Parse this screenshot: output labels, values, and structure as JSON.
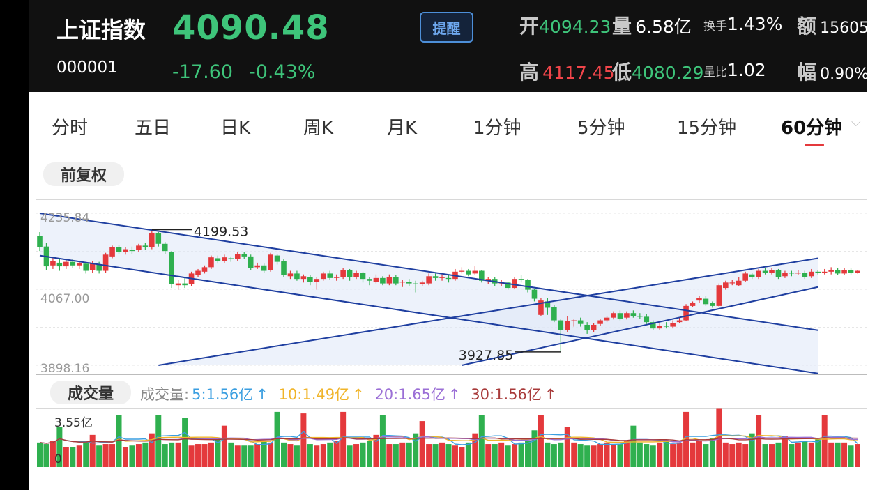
{
  "header": {
    "name": "上证指数",
    "code": "000001",
    "price": "4090.48",
    "change": "-17.60",
    "change_pct": "-0.43%",
    "alert_label": "提醒",
    "open_label": "开",
    "open_value": "4094.23",
    "volume_label": "量",
    "volume_value": "6.58亿",
    "turnover_label": "换手",
    "turnover_value": "1.43%",
    "amount_label": "额",
    "amount_value": "15605",
    "high_label": "高",
    "high_value": "4117.45",
    "low_label": "低",
    "low_value": "4080.29",
    "vol_ratio_label": "量比",
    "vol_ratio_value": "1.02",
    "amplitude_label": "幅",
    "amplitude_value": "0.90%"
  },
  "tabs": [
    {
      "label": "分时"
    },
    {
      "label": "五日"
    },
    {
      "label": "日K"
    },
    {
      "label": "周K"
    },
    {
      "label": "月K"
    },
    {
      "label": "1分钟"
    },
    {
      "label": "5分钟"
    },
    {
      "label": "15分钟"
    },
    {
      "label": "60分钟",
      "active": true
    }
  ],
  "adjust_label": "前复权",
  "volume_panel": {
    "label": "成交量",
    "legend_prefix": "成交量:",
    "ma": [
      {
        "text": "5:1.56亿",
        "color": "#3a9ee0"
      },
      {
        "text": "10:1.49亿",
        "color": "#f0b429"
      },
      {
        "text": "20:1.65亿",
        "color": "#9b6fd6"
      },
      {
        "text": "30:1.56亿",
        "color": "#a83a3a"
      }
    ],
    "arrow": "↑",
    "ymax_label": "3.55亿",
    "ymin_label": "0"
  },
  "colors": {
    "up": "#e4393c",
    "down": "#2fb04f",
    "trend": "#1f3fa0",
    "fill": "#dfe8f7"
  },
  "chart_data": {
    "type": "candlestick",
    "y_axis_labels": [
      "4235.84",
      "4067.00",
      "3898.16"
    ],
    "ylim": [
      3898.16,
      4235.84
    ],
    "max_label": "4199.53",
    "min_label": "3927.85",
    "candles": [
      [
        4185,
        4160,
        4194,
        4152
      ],
      [
        4162,
        4118,
        4170,
        4110
      ],
      [
        4120,
        4130,
        4136,
        4112
      ],
      [
        4126,
        4118,
        4134,
        4108
      ],
      [
        4118,
        4128,
        4132,
        4112
      ],
      [
        4128,
        4120,
        4134,
        4114
      ],
      [
        4120,
        4126,
        4130,
        4112
      ],
      [
        4124,
        4108,
        4128,
        4102
      ],
      [
        4110,
        4124,
        4130,
        4104
      ],
      [
        4122,
        4108,
        4128,
        4102
      ],
      [
        4108,
        4144,
        4148,
        4104
      ],
      [
        4140,
        4160,
        4164,
        4136
      ],
      [
        4160,
        4150,
        4166,
        4146
      ],
      [
        4150,
        4156,
        4160,
        4144
      ],
      [
        4154,
        4152,
        4162,
        4146
      ],
      [
        4154,
        4164,
        4168,
        4150
      ],
      [
        4164,
        4160,
        4170,
        4154
      ],
      [
        4160,
        4192,
        4199.53,
        4156
      ],
      [
        4192,
        4168,
        4194,
        4162
      ],
      [
        4168,
        4152,
        4172,
        4146
      ],
      [
        4150,
        4078,
        4152,
        4070
      ],
      [
        4076,
        4080,
        4088,
        4066
      ],
      [
        4080,
        4076,
        4092,
        4070
      ],
      [
        4078,
        4102,
        4106,
        4074
      ],
      [
        4098,
        4108,
        4112,
        4094
      ],
      [
        4106,
        4116,
        4120,
        4102
      ],
      [
        4116,
        4138,
        4142,
        4112
      ],
      [
        4136,
        4130,
        4142,
        4124
      ],
      [
        4130,
        4138,
        4144,
        4126
      ],
      [
        4136,
        4134,
        4140,
        4128
      ],
      [
        4134,
        4146,
        4150,
        4130
      ],
      [
        4146,
        4140,
        4150,
        4134
      ],
      [
        4140,
        4114,
        4144,
        4110
      ],
      [
        4116,
        4120,
        4126,
        4112
      ],
      [
        4120,
        4108,
        4124,
        4104
      ],
      [
        4110,
        4144,
        4148,
        4106
      ],
      [
        4142,
        4128,
        4146,
        4122
      ],
      [
        4130,
        4098,
        4134,
        4094
      ],
      [
        4096,
        4102,
        4108,
        4090
      ],
      [
        4102,
        4090,
        4108,
        4086
      ],
      [
        4090,
        4096,
        4100,
        4082
      ],
      [
        4094,
        4084,
        4098,
        4076
      ],
      [
        4084,
        4090,
        4094,
        4066
      ],
      [
        4090,
        4102,
        4106,
        4086
      ],
      [
        4102,
        4092,
        4108,
        4088
      ],
      [
        4094,
        4094,
        4100,
        4086
      ],
      [
        4094,
        4110,
        4114,
        4090
      ],
      [
        4110,
        4094,
        4112,
        4086
      ],
      [
        4094,
        4104,
        4108,
        4090
      ],
      [
        4104,
        4090,
        4106,
        4082
      ],
      [
        4090,
        4086,
        4094,
        4076
      ],
      [
        4084,
        4092,
        4100,
        4080
      ],
      [
        4092,
        4080,
        4096,
        4076
      ],
      [
        4080,
        4094,
        4100,
        4076
      ],
      [
        4094,
        4080,
        4098,
        4076
      ],
      [
        4082,
        4084,
        4088,
        4072
      ],
      [
        4084,
        4080,
        4090,
        4074
      ],
      [
        4080,
        4078,
        4086,
        4060
      ],
      [
        4078,
        4082,
        4086,
        4074
      ],
      [
        4080,
        4096,
        4102,
        4076
      ],
      [
        4096,
        4092,
        4102,
        4086
      ],
      [
        4092,
        4094,
        4100,
        4086
      ],
      [
        4092,
        4090,
        4098,
        4082
      ],
      [
        4090,
        4106,
        4112,
        4086
      ],
      [
        4106,
        4108,
        4116,
        4102
      ],
      [
        4108,
        4100,
        4112,
        4096
      ],
      [
        4102,
        4108,
        4118,
        4098
      ],
      [
        4108,
        4086,
        4110,
        4082
      ],
      [
        4086,
        4090,
        4094,
        4078
      ],
      [
        4090,
        4080,
        4094,
        4074
      ],
      [
        4080,
        4080,
        4088,
        4074
      ],
      [
        4082,
        4070,
        4084,
        4066
      ],
      [
        4070,
        4090,
        4094,
        4068
      ],
      [
        4090,
        4088,
        4098,
        4082
      ],
      [
        4088,
        4066,
        4090,
        4060
      ],
      [
        4066,
        4046,
        4068,
        4040
      ],
      [
        4010,
        4042,
        4048,
        4008
      ],
      [
        4040,
        4026,
        4048,
        4010
      ],
      [
        4028,
        3998,
        4032,
        3994
      ],
      [
        3998,
        3976,
        4000,
        3927.85
      ],
      [
        3976,
        3996,
        4008,
        3972
      ],
      [
        3996,
        3998,
        4000,
        3984
      ],
      [
        3998,
        3990,
        4004,
        3984
      ],
      [
        3988,
        3976,
        3994,
        3968
      ],
      [
        3976,
        3988,
        3992,
        3972
      ],
      [
        3990,
        3998,
        4000,
        3986
      ],
      [
        3998,
        4004,
        4008,
        3994
      ],
      [
        4004,
        4014,
        4018,
        4000
      ],
      [
        4014,
        4002,
        4020,
        3998
      ],
      [
        4004,
        4014,
        4018,
        4000
      ],
      [
        4014,
        4008,
        4020,
        4004
      ],
      [
        4008,
        4006,
        4014,
        4002
      ],
      [
        4006,
        3994,
        4012,
        3990
      ],
      [
        3994,
        3980,
        3998,
        3976
      ],
      [
        3980,
        3986,
        3992,
        3976
      ],
      [
        3986,
        3984,
        3994,
        3980
      ],
      [
        3984,
        3992,
        3998,
        3980
      ],
      [
        3994,
        3998,
        4004,
        3992
      ],
      [
        3998,
        4030,
        4034,
        3996
      ],
      [
        4030,
        4036,
        4040,
        4028
      ],
      [
        4042,
        4048,
        4052,
        4036
      ],
      [
        4046,
        4034,
        4052,
        4030
      ],
      [
        4036,
        4030,
        4040,
        4026
      ],
      [
        4030,
        4076,
        4080,
        4028
      ],
      [
        4070,
        4082,
        4086,
        4066
      ],
      [
        4082,
        4082,
        4088,
        4076
      ],
      [
        4076,
        4086,
        4094,
        4074
      ],
      [
        4086,
        4102,
        4106,
        4084
      ],
      [
        4100,
        4094,
        4104,
        4090
      ],
      [
        4094,
        4108,
        4112,
        4090
      ],
      [
        4108,
        4104,
        4114,
        4100
      ],
      [
        4104,
        4110,
        4114,
        4100
      ],
      [
        4110,
        4094,
        4112,
        4090
      ],
      [
        4096,
        4104,
        4108,
        4092
      ],
      [
        4104,
        4102,
        4108,
        4096
      ],
      [
        4102,
        4104,
        4110,
        4098
      ],
      [
        4104,
        4094,
        4108,
        4090
      ],
      [
        4096,
        4106,
        4112,
        4092
      ],
      [
        4106,
        4104,
        4110,
        4100
      ],
      [
        4104,
        4106,
        4112,
        4100
      ],
      [
        4106,
        4110,
        4116,
        4100
      ],
      [
        4110,
        4102,
        4114,
        4098
      ],
      [
        4102,
        4110,
        4114,
        4098
      ],
      [
        4110,
        4104,
        4114,
        4100
      ],
      [
        4104,
        4108,
        4110,
        4102
      ]
    ],
    "trend_lines": [
      {
        "from": [
          0,
          4235.84
        ],
        "to": [
          118,
          3976
        ]
      },
      {
        "from": [
          0,
          4142
        ],
        "to": [
          118,
          3880
        ]
      },
      {
        "from": [
          18,
          3898.16
        ],
        "to": [
          118,
          4136
        ]
      },
      {
        "from": [
          64,
          3898.16
        ],
        "to": [
          118,
          4072
        ]
      }
    ],
    "volume": {
      "ylim": [
        0,
        3.55
      ],
      "values": [
        1.6,
        1.5,
        1.7,
        2.6,
        1.3,
        1.3,
        1.4,
        1.7,
        2.1,
        1.4,
        1.5,
        1.5,
        3.4,
        1.3,
        1.4,
        1.5,
        1.6,
        2.2,
        3.4,
        1.5,
        1.6,
        1.6,
        3.2,
        1.4,
        1.5,
        1.5,
        1.6,
        1.9,
        2.7,
        1.6,
        1.4,
        1.4,
        1.4,
        1.5,
        1.7,
        1.6,
        3.6,
        1.6,
        1.5,
        1.4,
        3.5,
        1.5,
        1.4,
        1.5,
        1.6,
        1.7,
        3.6,
        1.4,
        1.5,
        1.6,
        1.7,
        2.1,
        3.4,
        1.5,
        1.5,
        1.6,
        1.6,
        2.2,
        3.0,
        1.5,
        1.5,
        1.6,
        1.5,
        1.4,
        1.3,
        1.6,
        2.2,
        3.4,
        1.5,
        1.5,
        1.6,
        1.4,
        1.5,
        1.6,
        1.7,
        2.4,
        3.4,
        1.6,
        1.5,
        1.6,
        2.6,
        1.6,
        1.5,
        1.4,
        1.4,
        1.5,
        1.6,
        1.5,
        1.5,
        1.7,
        2.7,
        1.6,
        1.5,
        1.4,
        1.6,
        1.7,
        1.5,
        1.6,
        3.6,
        1.6,
        1.7,
        1.5,
        1.9,
        3.8,
        1.6,
        1.5,
        1.6,
        1.5,
        2.2,
        3.4,
        1.5,
        1.5,
        1.6,
        2.0,
        1.5,
        1.6,
        1.7,
        1.6,
        1.8,
        3.4,
        1.6,
        1.6,
        1.6,
        1.4,
        1.5
      ],
      "ma5": [
        1.55,
        1.6,
        1.62,
        1.8,
        1.58,
        1.52,
        1.6,
        1.5,
        1.58,
        1.6,
        1.72,
        1.65,
        1.9,
        1.75,
        1.6,
        1.58,
        1.62,
        1.75,
        1.9,
        1.7
      ]
    }
  }
}
